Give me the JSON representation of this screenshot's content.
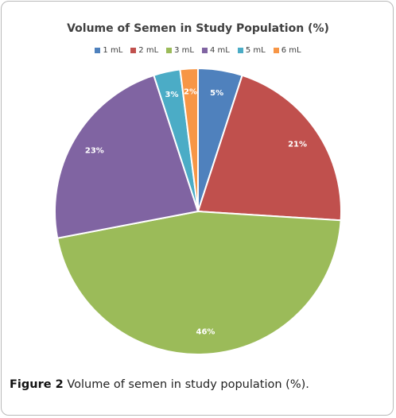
{
  "chart_data": {
    "type": "pie",
    "title": "Volume of Semen in Study Population (%)",
    "categories": [
      "1 mL",
      "2 mL",
      "3 mL",
      "4 mL",
      "5 mL",
      "6 mL"
    ],
    "values": [
      5,
      21,
      46,
      23,
      3,
      2
    ],
    "labels": [
      "5%",
      "21%",
      "46%",
      "23%",
      "3%",
      "2%"
    ],
    "colors": [
      "#4f81bd",
      "#c0504d",
      "#9bbb59",
      "#8064a2",
      "#4bacc6",
      "#f79646"
    ],
    "legend_position": "top",
    "start": "12 o'clock, clockwise"
  },
  "caption": {
    "label": "Figure 2",
    "text": "Volume of semen in study population (%)."
  }
}
